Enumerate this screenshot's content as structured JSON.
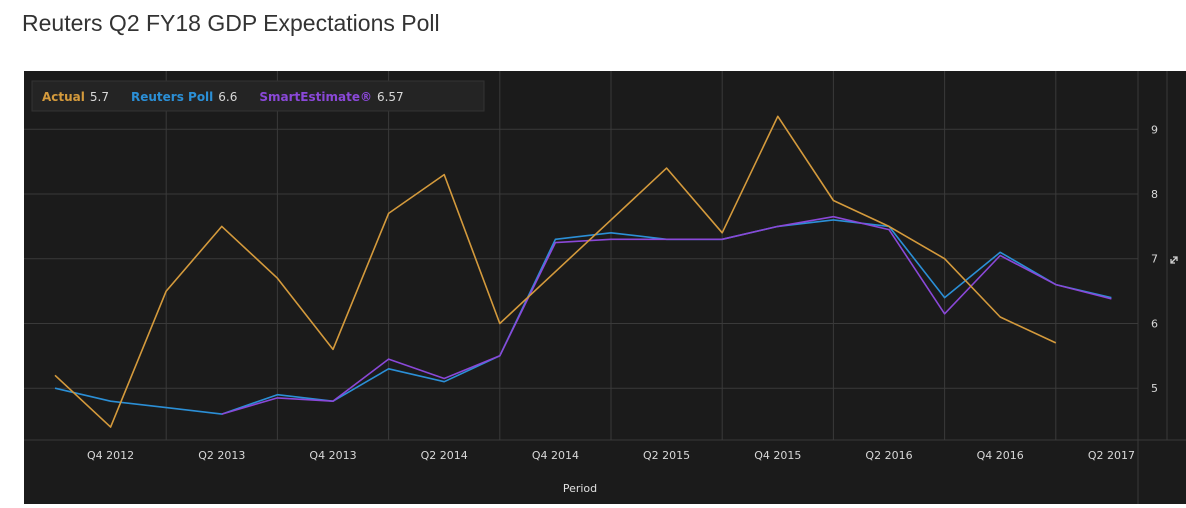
{
  "page": {
    "title": "Reuters Q2 FY18 GDP Expectations Poll"
  },
  "colors": {
    "background": "#1b1b1b",
    "grid": "#3a3a3a",
    "actual": "#d49a3c",
    "reuters": "#2b8fd6",
    "smart": "#8a48d8",
    "text": "#d8d8d8"
  },
  "chart_data": {
    "type": "line",
    "title": "",
    "xlabel": "Period",
    "ylabel": "",
    "ylim": [
      4.2,
      9.9
    ],
    "y_ticks": [
      5,
      6,
      7,
      8,
      9
    ],
    "y_axis_side": "right",
    "grid": true,
    "legend_position": "top-left",
    "x": [
      "Q3 2012",
      "Q4 2012",
      "Q1 2013",
      "Q2 2013",
      "Q3 2013",
      "Q4 2013",
      "Q1 2014",
      "Q2 2014",
      "Q3 2014",
      "Q4 2014",
      "Q1 2015",
      "Q2 2015",
      "Q3 2015",
      "Q4 2015",
      "Q1 2016",
      "Q2 2016",
      "Q3 2016",
      "Q4 2016",
      "Q1 2017",
      "Q2 2017",
      "Q3 2017"
    ],
    "x_tick_labels": [
      "Q4 2012",
      "Q2 2013",
      "Q4 2013",
      "Q2 2014",
      "Q4 2014",
      "Q2 2015",
      "Q4 2015",
      "Q2 2016",
      "Q4 2016",
      "Q2 2017"
    ],
    "series": [
      {
        "name": "Actual",
        "latest_label": "5.7",
        "color": "#d49a3c",
        "values": [
          5.2,
          4.4,
          6.5,
          7.5,
          6.7,
          5.6,
          7.7,
          8.3,
          6.0,
          6.8,
          7.6,
          8.4,
          7.4,
          9.2,
          7.9,
          7.5,
          7.0,
          6.1,
          5.7,
          null,
          null
        ]
      },
      {
        "name": "Reuters Poll",
        "latest_label": "6.6",
        "color": "#2b8fd6",
        "values": [
          5.0,
          4.8,
          4.7,
          4.6,
          4.9,
          4.8,
          5.3,
          5.1,
          5.5,
          7.3,
          7.4,
          7.3,
          7.3,
          7.5,
          7.6,
          7.5,
          6.4,
          7.1,
          6.6,
          6.4,
          null
        ]
      },
      {
        "name": "SmartEstimate®",
        "latest_label": "6.57",
        "color": "#8a48d8",
        "values": [
          null,
          null,
          null,
          4.6,
          4.85,
          4.8,
          5.45,
          5.15,
          5.5,
          7.25,
          7.3,
          7.3,
          7.3,
          7.5,
          7.65,
          7.45,
          6.15,
          7.05,
          6.6,
          6.38,
          null
        ]
      }
    ]
  }
}
